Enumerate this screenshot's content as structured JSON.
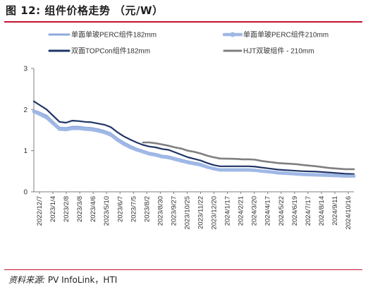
{
  "figure": {
    "title": "图 12:  组件价格走势 （元/W）",
    "source_label": "资料来源:",
    "source_text": "PV InfoLink，HTI"
  },
  "colors": {
    "accent_rule": "#c4122f",
    "perc182": "#8ea9db",
    "perc210": "#9fb8e6",
    "topcon182": "#1f3566",
    "hjt210": "#7f7f7f"
  },
  "chart_data": {
    "type": "line",
    "title": "组件价格走势 （元/W）",
    "xlabel": "",
    "ylabel": "",
    "ylim": [
      0,
      3
    ],
    "yticks": [
      0,
      1,
      2,
      3
    ],
    "grid": false,
    "legend_position": "top",
    "x_start": "2022-12-07",
    "x_end": "2024-11-04",
    "x_tick_labels": [
      "2022/12/7",
      "2023/1/4",
      "2023/2/8",
      "2023/3/8",
      "2023/4/6",
      "2023/5/10",
      "2023/6/7",
      "2023/7/5",
      "2023/8/2",
      "2023/8/30",
      "2023/9/27",
      "2023/10/25",
      "2023/11/22",
      "2023/12/20",
      "2024/1/17",
      "2024/2/21",
      "2024/3/20",
      "2024/4/17",
      "2024/5/22",
      "2024/6/19",
      "2024/7/17",
      "2024/8/14",
      "2024/9/11",
      "2024/10/16"
    ],
    "series": [
      {
        "name": "单面单玻PERC组件182mm",
        "style": "line",
        "color": "#8ea9db",
        "points": [
          [
            "2022-12-07",
            1.98
          ],
          [
            "2022-12-21",
            1.92
          ],
          [
            "2023-01-04",
            1.85
          ],
          [
            "2023-01-18",
            1.7
          ],
          [
            "2023-02-01",
            1.56
          ],
          [
            "2023-02-15",
            1.55
          ],
          [
            "2023-03-01",
            1.58
          ],
          [
            "2023-03-15",
            1.58
          ],
          [
            "2023-03-29",
            1.56
          ],
          [
            "2023-04-12",
            1.55
          ],
          [
            "2023-04-26",
            1.52
          ],
          [
            "2023-05-10",
            1.48
          ],
          [
            "2023-05-24",
            1.42
          ],
          [
            "2023-06-07",
            1.3
          ],
          [
            "2023-06-21",
            1.2
          ],
          [
            "2023-07-05",
            1.12
          ],
          [
            "2023-07-19",
            1.05
          ],
          [
            "2023-08-02",
            1.0
          ],
          [
            "2023-08-16",
            0.95
          ],
          [
            "2023-08-30",
            0.92
          ],
          [
            "2023-09-13",
            0.88
          ],
          [
            "2023-09-27",
            0.86
          ],
          [
            "2023-10-11",
            0.82
          ],
          [
            "2023-10-25",
            0.78
          ],
          [
            "2023-11-08",
            0.74
          ],
          [
            "2023-11-22",
            0.71
          ],
          [
            "2023-12-06",
            0.68
          ],
          [
            "2023-12-20",
            0.62
          ],
          [
            "2024-01-03",
            0.58
          ],
          [
            "2024-01-17",
            0.55
          ],
          [
            "2024-02-21",
            0.55
          ],
          [
            "2024-03-06",
            0.55
          ],
          [
            "2024-03-20",
            0.55
          ],
          [
            "2024-04-03",
            0.54
          ],
          [
            "2024-04-17",
            0.52
          ],
          [
            "2024-05-08",
            0.5
          ],
          [
            "2024-05-22",
            0.48
          ],
          [
            "2024-06-05",
            0.47
          ],
          [
            "2024-06-19",
            0.46
          ],
          [
            "2024-07-03",
            0.45
          ],
          [
            "2024-07-17",
            0.44
          ],
          [
            "2024-08-14",
            0.43
          ],
          [
            "2024-09-11",
            0.42
          ],
          [
            "2024-10-16",
            0.4
          ],
          [
            "2024-11-04",
            0.4
          ]
        ]
      },
      {
        "name": "单面单玻PERC组件210mm",
        "style": "line-markers",
        "color": "#9fb8e6",
        "points": [
          [
            "2022-12-07",
            1.95
          ],
          [
            "2022-12-21",
            1.88
          ],
          [
            "2023-01-04",
            1.8
          ],
          [
            "2023-01-18",
            1.66
          ],
          [
            "2023-02-01",
            1.52
          ],
          [
            "2023-02-15",
            1.51
          ],
          [
            "2023-03-01",
            1.54
          ],
          [
            "2023-03-15",
            1.54
          ],
          [
            "2023-03-29",
            1.52
          ],
          [
            "2023-04-12",
            1.51
          ],
          [
            "2023-04-26",
            1.48
          ],
          [
            "2023-05-10",
            1.44
          ],
          [
            "2023-05-24",
            1.38
          ],
          [
            "2023-06-07",
            1.26
          ],
          [
            "2023-06-21",
            1.16
          ],
          [
            "2023-07-05",
            1.08
          ],
          [
            "2023-07-19",
            1.02
          ],
          [
            "2023-08-02",
            0.97
          ],
          [
            "2023-08-16",
            0.92
          ],
          [
            "2023-08-30",
            0.89
          ],
          [
            "2023-09-13",
            0.85
          ],
          [
            "2023-09-27",
            0.83
          ],
          [
            "2023-10-11",
            0.79
          ],
          [
            "2023-10-25",
            0.75
          ],
          [
            "2023-11-08",
            0.71
          ],
          [
            "2023-11-22",
            0.68
          ],
          [
            "2023-12-06",
            0.65
          ],
          [
            "2023-12-20",
            0.6
          ],
          [
            "2024-01-03",
            0.56
          ],
          [
            "2024-01-17",
            0.53
          ],
          [
            "2024-02-21",
            0.53
          ],
          [
            "2024-03-06",
            0.53
          ],
          [
            "2024-03-20",
            0.53
          ],
          [
            "2024-04-03",
            0.52
          ],
          [
            "2024-04-17",
            0.5
          ],
          [
            "2024-05-08",
            0.48
          ],
          [
            "2024-05-22",
            0.46
          ],
          [
            "2024-06-05",
            0.45
          ],
          [
            "2024-06-19",
            0.44
          ],
          [
            "2024-07-03",
            0.43
          ],
          [
            "2024-07-17",
            0.42
          ],
          [
            "2024-08-14",
            0.41
          ],
          [
            "2024-09-11",
            0.4
          ],
          [
            "2024-10-16",
            0.38
          ],
          [
            "2024-11-04",
            0.38
          ]
        ]
      },
      {
        "name": "双面TOPCon组件182mm",
        "style": "line",
        "color": "#1f3566",
        "points": [
          [
            "2022-12-07",
            2.2
          ],
          [
            "2022-12-21",
            2.1
          ],
          [
            "2023-01-04",
            2.0
          ],
          [
            "2023-01-18",
            1.85
          ],
          [
            "2023-02-01",
            1.7
          ],
          [
            "2023-02-15",
            1.68
          ],
          [
            "2023-03-01",
            1.73
          ],
          [
            "2023-03-15",
            1.72
          ],
          [
            "2023-03-29",
            1.7
          ],
          [
            "2023-04-12",
            1.69
          ],
          [
            "2023-04-26",
            1.66
          ],
          [
            "2023-05-10",
            1.63
          ],
          [
            "2023-05-24",
            1.57
          ],
          [
            "2023-06-07",
            1.45
          ],
          [
            "2023-06-21",
            1.35
          ],
          [
            "2023-07-05",
            1.27
          ],
          [
            "2023-07-19",
            1.2
          ],
          [
            "2023-08-02",
            1.14
          ],
          [
            "2023-08-16",
            1.1
          ],
          [
            "2023-08-30",
            1.08
          ],
          [
            "2023-09-13",
            1.04
          ],
          [
            "2023-09-27",
            1.02
          ],
          [
            "2023-10-11",
            0.96
          ],
          [
            "2023-10-25",
            0.9
          ],
          [
            "2023-11-08",
            0.84
          ],
          [
            "2023-11-22",
            0.8
          ],
          [
            "2023-12-06",
            0.76
          ],
          [
            "2023-12-20",
            0.7
          ],
          [
            "2024-01-03",
            0.65
          ],
          [
            "2024-01-17",
            0.62
          ],
          [
            "2024-02-21",
            0.62
          ],
          [
            "2024-03-06",
            0.62
          ],
          [
            "2024-03-20",
            0.62
          ],
          [
            "2024-04-03",
            0.61
          ],
          [
            "2024-04-17",
            0.59
          ],
          [
            "2024-05-08",
            0.56
          ],
          [
            "2024-05-22",
            0.54
          ],
          [
            "2024-06-05",
            0.53
          ],
          [
            "2024-06-19",
            0.52
          ],
          [
            "2024-07-03",
            0.51
          ],
          [
            "2024-07-17",
            0.5
          ],
          [
            "2024-08-14",
            0.49
          ],
          [
            "2024-09-11",
            0.47
          ],
          [
            "2024-10-16",
            0.44
          ],
          [
            "2024-11-04",
            0.43
          ]
        ]
      },
      {
        "name": "HJT双玻组件 - 210mm",
        "style": "line",
        "color": "#7f7f7f",
        "points": [
          [
            "2023-08-02",
            1.2
          ],
          [
            "2023-08-16",
            1.2
          ],
          [
            "2023-08-30",
            1.18
          ],
          [
            "2023-09-13",
            1.15
          ],
          [
            "2023-09-27",
            1.12
          ],
          [
            "2023-10-11",
            1.08
          ],
          [
            "2023-10-25",
            1.05
          ],
          [
            "2023-11-08",
            1.0
          ],
          [
            "2023-11-22",
            0.97
          ],
          [
            "2023-12-06",
            0.93
          ],
          [
            "2023-12-20",
            0.88
          ],
          [
            "2024-01-03",
            0.84
          ],
          [
            "2024-01-17",
            0.81
          ],
          [
            "2024-02-21",
            0.8
          ],
          [
            "2024-03-06",
            0.79
          ],
          [
            "2024-03-20",
            0.79
          ],
          [
            "2024-04-03",
            0.78
          ],
          [
            "2024-04-17",
            0.75
          ],
          [
            "2024-05-08",
            0.72
          ],
          [
            "2024-05-22",
            0.7
          ],
          [
            "2024-06-05",
            0.69
          ],
          [
            "2024-06-19",
            0.68
          ],
          [
            "2024-07-03",
            0.67
          ],
          [
            "2024-07-17",
            0.65
          ],
          [
            "2024-08-14",
            0.62
          ],
          [
            "2024-09-11",
            0.58
          ],
          [
            "2024-10-16",
            0.55
          ],
          [
            "2024-11-04",
            0.55
          ]
        ]
      }
    ]
  }
}
